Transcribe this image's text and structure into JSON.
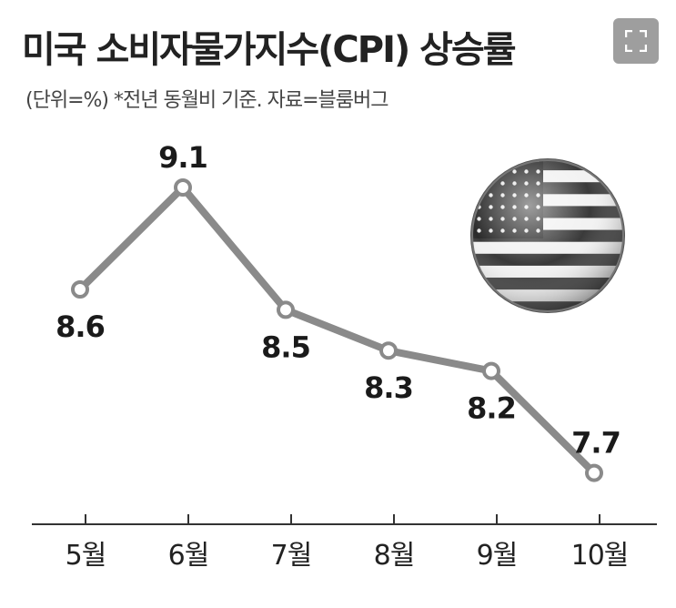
{
  "header": {
    "title": "미국 소비자물가지수(CPI) 상승률",
    "subtitle": "(단위=%) *전년 동월비 기준. 자료=블룸버그"
  },
  "controls": {
    "expand_icon": "expand-icon"
  },
  "decor": {
    "flag_icon": "us-flag-icon"
  },
  "colors": {
    "line": "#8a8a8a",
    "marker_fill": "#ffffff",
    "axis": "#333333",
    "expand_bg": "#9e9e9e"
  },
  "chart_data": {
    "type": "line",
    "title": "미국 소비자물가지수(CPI) 상승률",
    "categories": [
      "5월",
      "6월",
      "7월",
      "8월",
      "9월",
      "10월"
    ],
    "series": [
      {
        "values": [
          8.6,
          9.1,
          8.5,
          8.3,
          8.2,
          7.7
        ]
      }
    ],
    "unit": "%",
    "xlabel": "",
    "ylabel": "",
    "grid": false,
    "legend": "none"
  }
}
